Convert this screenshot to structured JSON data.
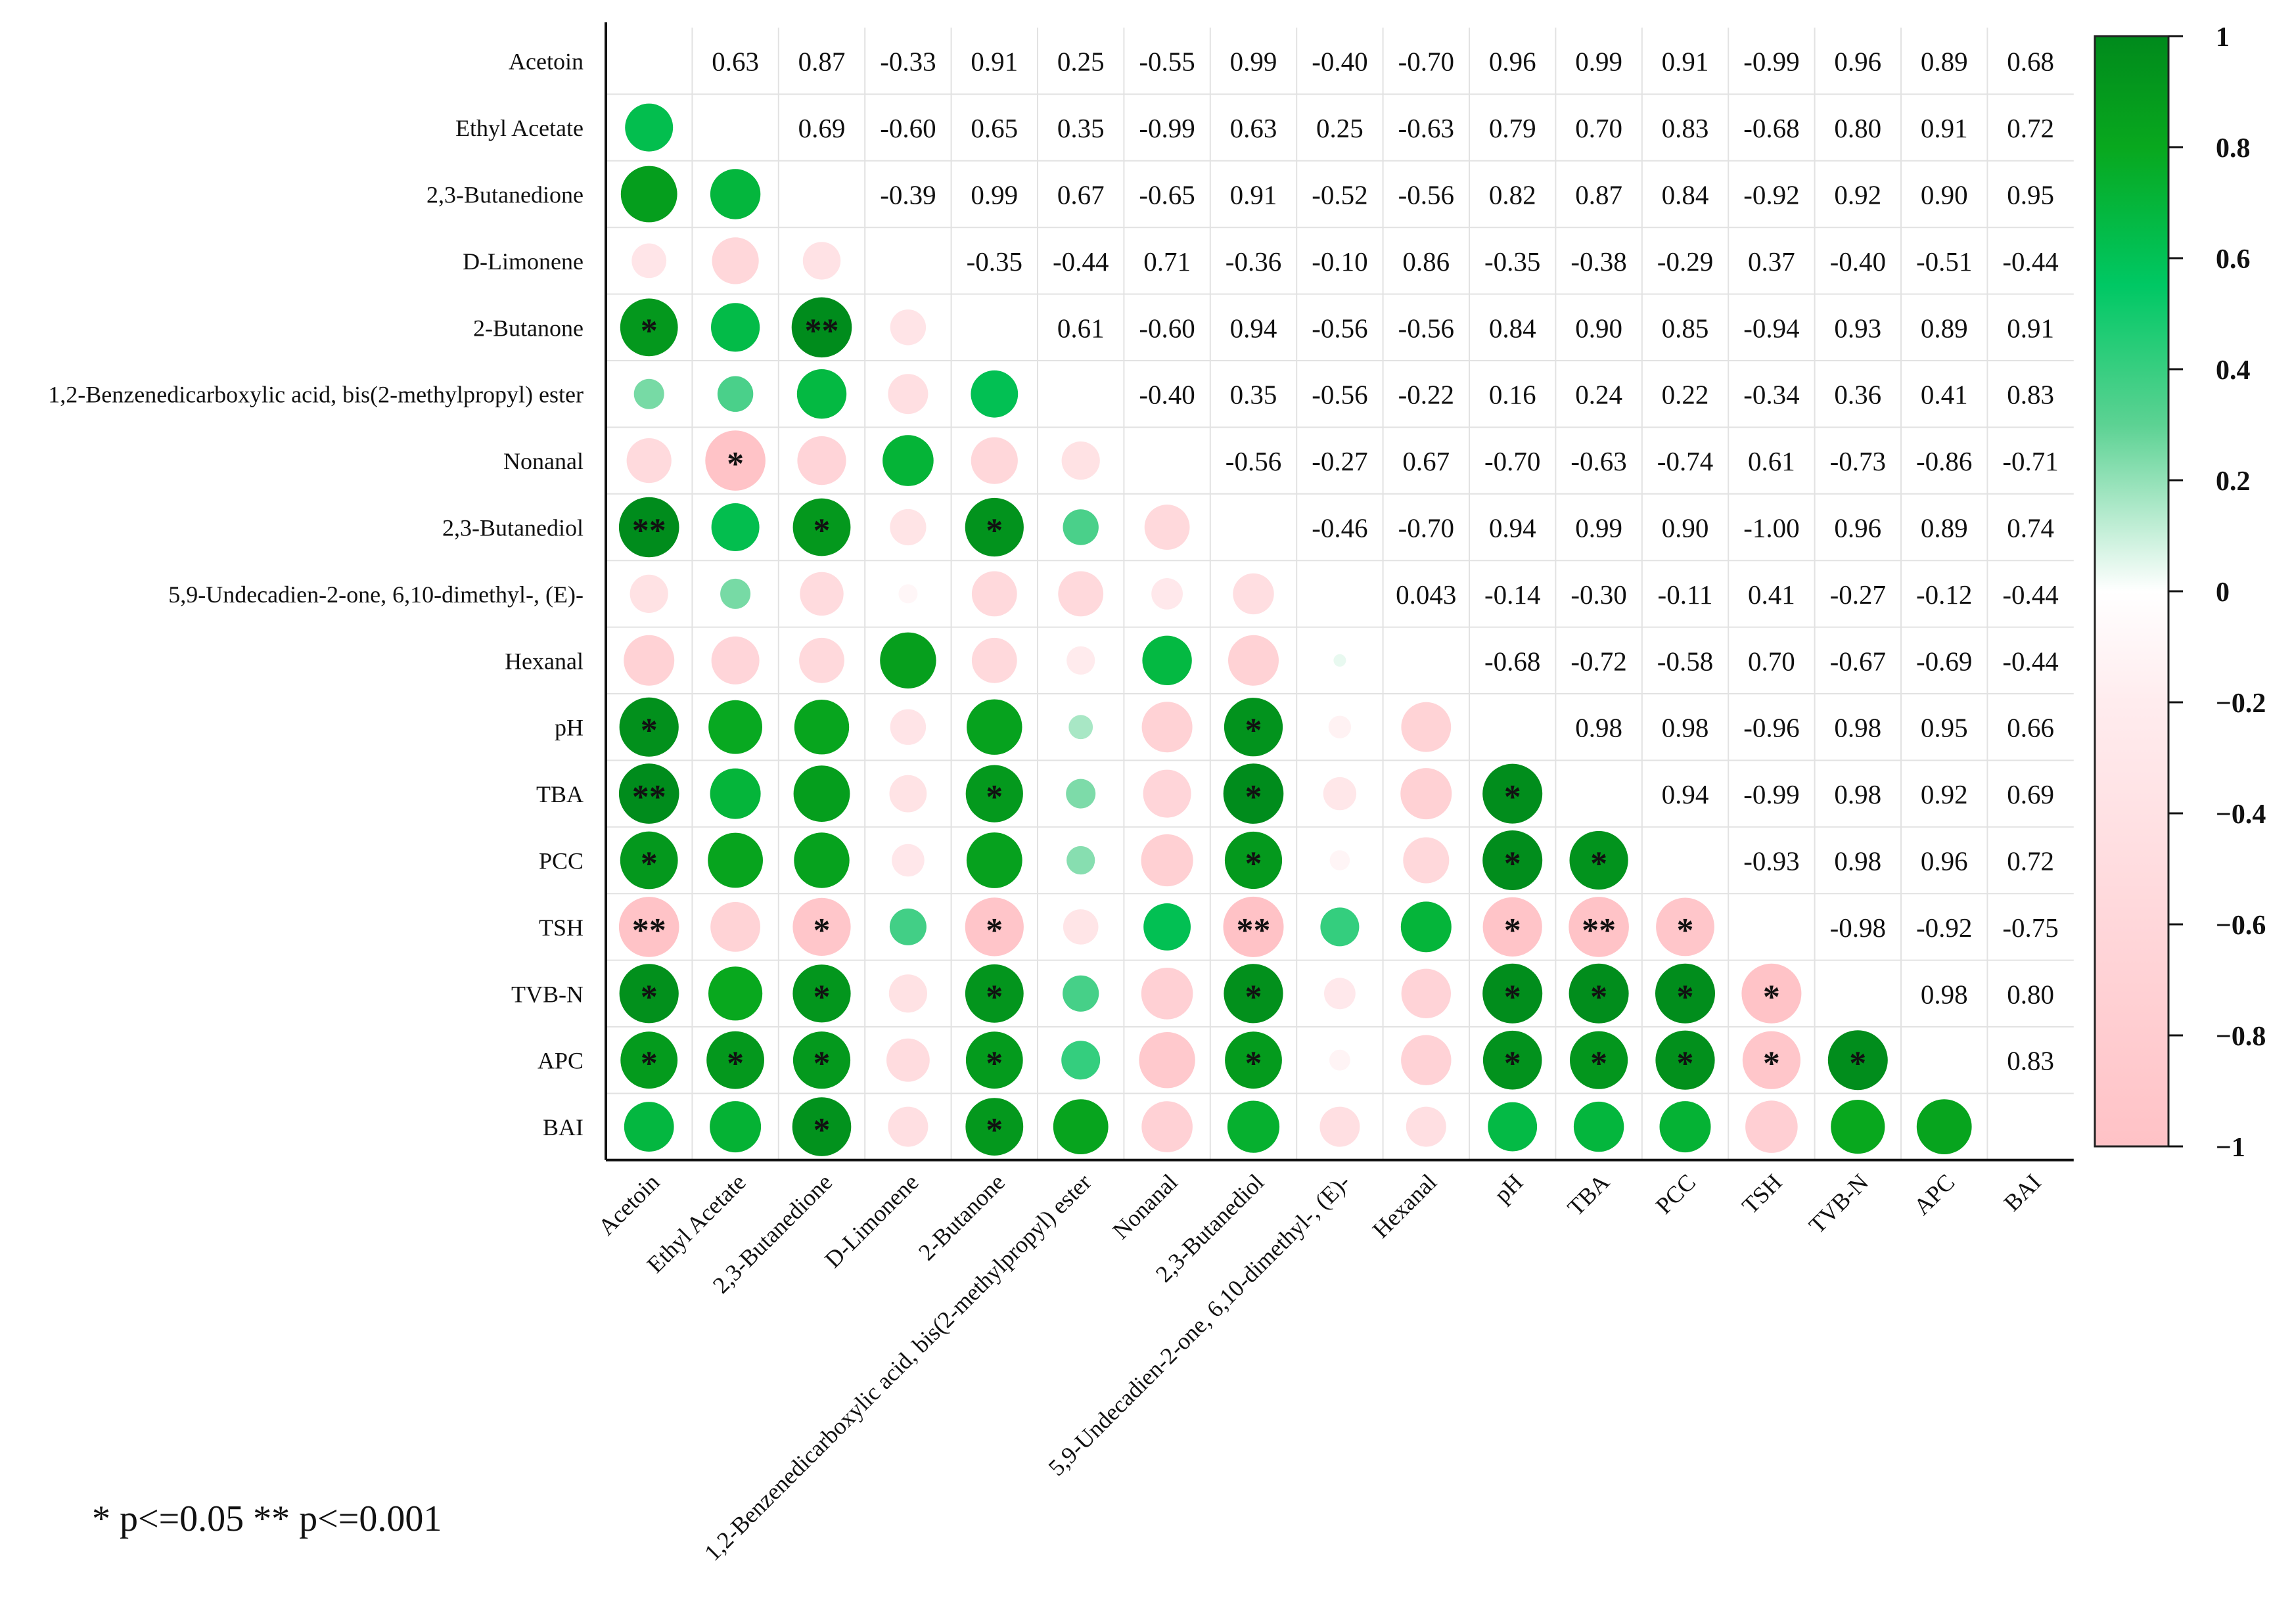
{
  "chart_data": {
    "type": "heatmap",
    "title": "",
    "variables": [
      "Acetoin",
      "Ethyl Acetate",
      "2,3-Butanedione",
      "D-Limonene",
      "2-Butanone",
      "1,2-Benzenedicarboxylic acid, bis(2-methylpropyl) ester",
      "Nonanal",
      "2,3-Butanediol",
      "5,9-Undecadien-2-one, 6,10-dimethyl-, (E)-",
      "Hexanal",
      "pH",
      "TBA",
      "PCC",
      "TSH",
      "TVB-N",
      "APC",
      "BAI"
    ],
    "upper_labels": [
      [
        "",
        "0.63",
        "0.87",
        "-0.33",
        "0.91",
        "0.25",
        "-0.55",
        "0.99",
        "-0.40",
        "-0.70",
        "0.96",
        "0.99",
        "0.91",
        "-0.99",
        "0.96",
        "0.89",
        "0.68"
      ],
      [
        "",
        "",
        "0.69",
        "-0.60",
        "0.65",
        "0.35",
        "-0.99",
        "0.63",
        "0.25",
        "-0.63",
        "0.79",
        "0.70",
        "0.83",
        "-0.68",
        "0.80",
        "0.91",
        "0.72"
      ],
      [
        "",
        "",
        "",
        "-0.39",
        "0.99",
        "0.67",
        "-0.65",
        "0.91",
        "-0.52",
        "-0.56",
        "0.82",
        "0.87",
        "0.84",
        "-0.92",
        "0.92",
        "0.90",
        "0.95"
      ],
      [
        "",
        "",
        "",
        "",
        "-0.35",
        "-0.44",
        "0.71",
        "-0.36",
        "-0.10",
        "0.86",
        "-0.35",
        "-0.38",
        "-0.29",
        "0.37",
        "-0.40",
        "-0.51",
        "-0.44"
      ],
      [
        "",
        "",
        "",
        "",
        "",
        "0.61",
        "-0.60",
        "0.94",
        "-0.56",
        "-0.56",
        "0.84",
        "0.90",
        "0.85",
        "-0.94",
        "0.93",
        "0.89",
        "0.91"
      ],
      [
        "",
        "",
        "",
        "",
        "",
        "",
        "-0.40",
        "0.35",
        "-0.56",
        "-0.22",
        "0.16",
        "0.24",
        "0.22",
        "-0.34",
        "0.36",
        "0.41",
        "0.83"
      ],
      [
        "",
        "",
        "",
        "",
        "",
        "",
        "",
        "-0.56",
        "-0.27",
        "0.67",
        "-0.70",
        "-0.63",
        "-0.74",
        "0.61",
        "-0.73",
        "-0.86",
        "-0.71"
      ],
      [
        "",
        "",
        "",
        "",
        "",
        "",
        "",
        "",
        "-0.46",
        "-0.70",
        "0.94",
        "0.99",
        "0.90",
        "-1.00",
        "0.96",
        "0.89",
        "0.74"
      ],
      [
        "",
        "",
        "",
        "",
        "",
        "",
        "",
        "",
        "",
        "0.043",
        "-0.14",
        "-0.30",
        "-0.11",
        "0.41",
        "-0.27",
        "-0.12",
        "-0.44"
      ],
      [
        "",
        "",
        "",
        "",
        "",
        "",
        "",
        "",
        "",
        "",
        "-0.68",
        "-0.72",
        "-0.58",
        "0.70",
        "-0.67",
        "-0.69",
        "-0.44"
      ],
      [
        "",
        "",
        "",
        "",
        "",
        "",
        "",
        "",
        "",
        "",
        "",
        "0.98",
        "0.98",
        "-0.96",
        "0.98",
        "0.95",
        "0.66"
      ],
      [
        "",
        "",
        "",
        "",
        "",
        "",
        "",
        "",
        "",
        "",
        "",
        "",
        "0.94",
        "-0.99",
        "0.98",
        "0.92",
        "0.69"
      ],
      [
        "",
        "",
        "",
        "",
        "",
        "",
        "",
        "",
        "",
        "",
        "",
        "",
        "",
        "-0.93",
        "0.98",
        "0.96",
        "0.72"
      ],
      [
        "",
        "",
        "",
        "",
        "",
        "",
        "",
        "",
        "",
        "",
        "",
        "",
        "",
        "",
        "-0.98",
        "-0.92",
        "-0.75"
      ],
      [
        "",
        "",
        "",
        "",
        "",
        "",
        "",
        "",
        "",
        "",
        "",
        "",
        "",
        "",
        "",
        "0.98",
        "0.80"
      ],
      [
        "",
        "",
        "",
        "",
        "",
        "",
        "",
        "",
        "",
        "",
        "",
        "",
        "",
        "",
        "",
        "",
        "0.83"
      ],
      [
        "",
        "",
        "",
        "",
        "",
        "",
        "",
        "",
        "",
        "",
        "",
        "",
        "",
        "",
        "",
        "",
        ""
      ]
    ],
    "significance": [
      {
        "row": 4,
        "col": 0,
        "mark": "*"
      },
      {
        "row": 4,
        "col": 2,
        "mark": "**"
      },
      {
        "row": 6,
        "col": 1,
        "mark": "*"
      },
      {
        "row": 7,
        "col": 0,
        "mark": "**"
      },
      {
        "row": 7,
        "col": 2,
        "mark": "*"
      },
      {
        "row": 7,
        "col": 4,
        "mark": "*"
      },
      {
        "row": 10,
        "col": 0,
        "mark": "*"
      },
      {
        "row": 10,
        "col": 7,
        "mark": "*"
      },
      {
        "row": 11,
        "col": 0,
        "mark": "**"
      },
      {
        "row": 11,
        "col": 4,
        "mark": "*"
      },
      {
        "row": 11,
        "col": 7,
        "mark": "*"
      },
      {
        "row": 11,
        "col": 10,
        "mark": "*"
      },
      {
        "row": 12,
        "col": 0,
        "mark": "*"
      },
      {
        "row": 12,
        "col": 7,
        "mark": "*"
      },
      {
        "row": 12,
        "col": 10,
        "mark": "*"
      },
      {
        "row": 12,
        "col": 11,
        "mark": "*"
      },
      {
        "row": 13,
        "col": 0,
        "mark": "**"
      },
      {
        "row": 13,
        "col": 2,
        "mark": "*"
      },
      {
        "row": 13,
        "col": 4,
        "mark": "*"
      },
      {
        "row": 13,
        "col": 7,
        "mark": "**"
      },
      {
        "row": 13,
        "col": 10,
        "mark": "*"
      },
      {
        "row": 13,
        "col": 11,
        "mark": "**"
      },
      {
        "row": 13,
        "col": 12,
        "mark": "*"
      },
      {
        "row": 14,
        "col": 0,
        "mark": "*"
      },
      {
        "row": 14,
        "col": 2,
        "mark": "*"
      },
      {
        "row": 14,
        "col": 4,
        "mark": "*"
      },
      {
        "row": 14,
        "col": 7,
        "mark": "*"
      },
      {
        "row": 14,
        "col": 10,
        "mark": "*"
      },
      {
        "row": 14,
        "col": 11,
        "mark": "*"
      },
      {
        "row": 14,
        "col": 12,
        "mark": "*"
      },
      {
        "row": 14,
        "col": 13,
        "mark": "*"
      },
      {
        "row": 15,
        "col": 0,
        "mark": "*"
      },
      {
        "row": 15,
        "col": 1,
        "mark": "*"
      },
      {
        "row": 15,
        "col": 2,
        "mark": "*"
      },
      {
        "row": 15,
        "col": 4,
        "mark": "*"
      },
      {
        "row": 15,
        "col": 7,
        "mark": "*"
      },
      {
        "row": 15,
        "col": 10,
        "mark": "*"
      },
      {
        "row": 15,
        "col": 11,
        "mark": "*"
      },
      {
        "row": 15,
        "col": 12,
        "mark": "*"
      },
      {
        "row": 15,
        "col": 13,
        "mark": "*"
      },
      {
        "row": 15,
        "col": 14,
        "mark": "*"
      },
      {
        "row": 16,
        "col": 2,
        "mark": "*"
      },
      {
        "row": 16,
        "col": 4,
        "mark": "*"
      }
    ],
    "color_scale": {
      "min": -1,
      "max": 1,
      "ticks": [
        "1",
        "0.8",
        "0.6",
        "0.4",
        "0.2",
        "0",
        "−0.2",
        "−0.4",
        "−0.6",
        "−0.8",
        "−1"
      ],
      "stops": [
        {
          "value": -1,
          "color": "#ffc2c6"
        },
        {
          "value": -0.2,
          "color": "#ffecee"
        },
        {
          "value": 0,
          "color": "#ffffff"
        },
        {
          "value": 0.3,
          "color": "#5cd293"
        },
        {
          "value": 0.55,
          "color": "#00c864"
        },
        {
          "value": 0.8,
          "color": "#08a81e"
        },
        {
          "value": 1,
          "color": "#008a1c"
        }
      ]
    },
    "footnote": "* p<=0.05  ** p<=0.001"
  }
}
